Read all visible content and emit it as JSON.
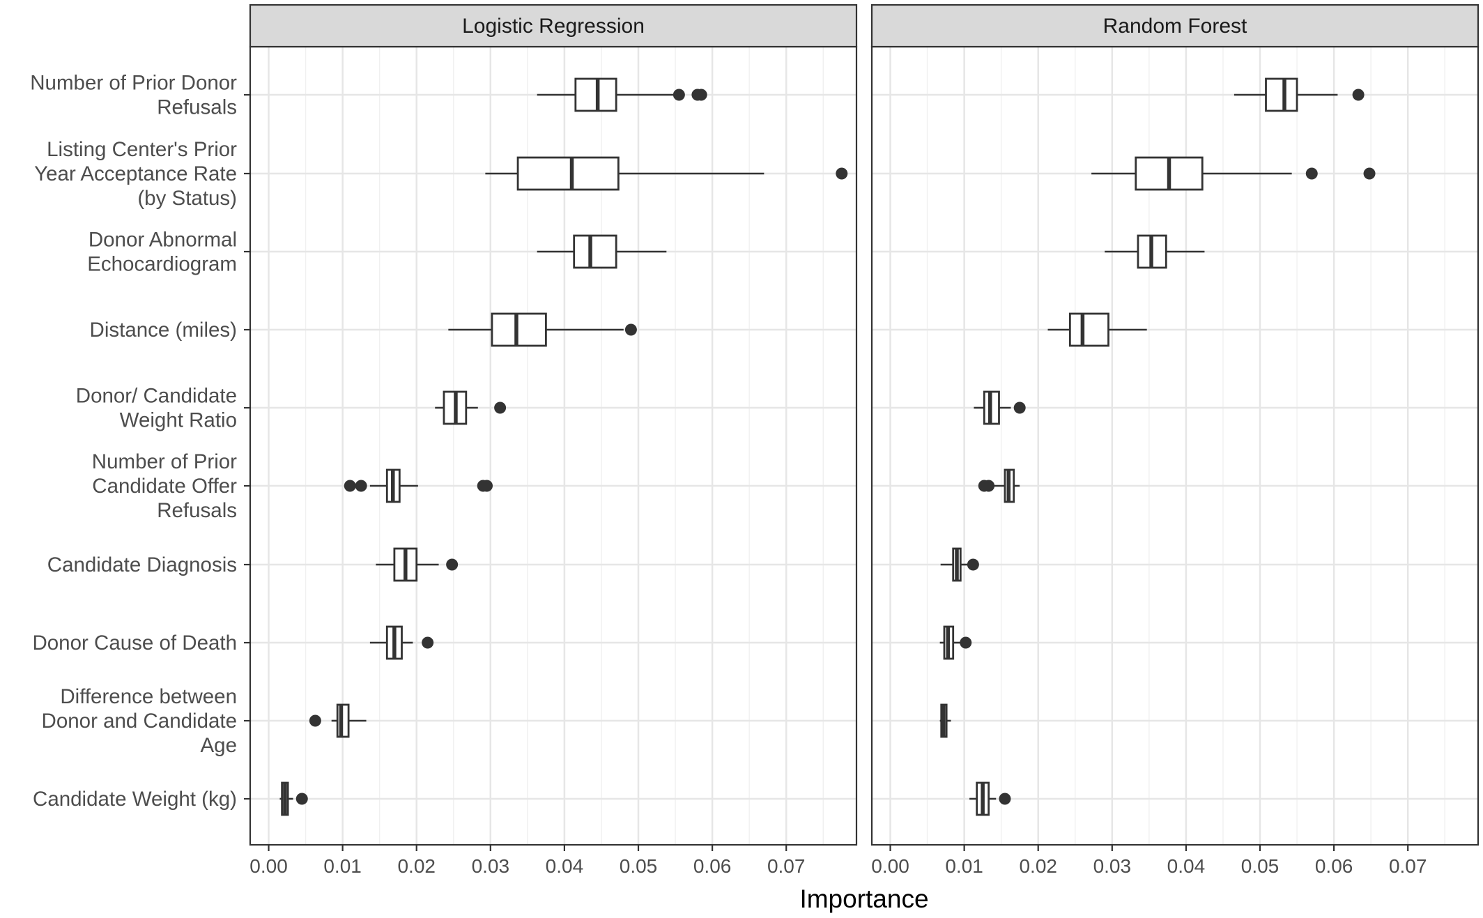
{
  "chart_data": {
    "type": "boxplot",
    "xlabel": "Importance",
    "xlim": [
      -0.0025,
      0.0795
    ],
    "x_ticks": [
      0.0,
      0.01,
      0.02,
      0.03,
      0.04,
      0.05,
      0.06,
      0.07
    ],
    "x_tick_labels": [
      "0.00",
      "0.01",
      "0.02",
      "0.03",
      "0.04",
      "0.05",
      "0.06",
      "0.07"
    ],
    "grid": true,
    "categories": [
      [
        "Number of Prior Donor",
        "Refusals"
      ],
      [
        "Listing Center's Prior",
        "Year Acceptance Rate",
        "(by Status)"
      ],
      [
        "Donor Abnormal",
        "Echocardiogram"
      ],
      [
        "Distance (miles)"
      ],
      [
        "Donor/ Candidate",
        "Weight Ratio"
      ],
      [
        "Number of Prior",
        "Candidate Offer",
        "Refusals"
      ],
      [
        "Candidate Diagnosis"
      ],
      [
        "Donor Cause of Death"
      ],
      [
        "Difference between",
        "Donor and Candidate",
        "Age"
      ],
      [
        "Candidate Weight (kg)"
      ]
    ],
    "panels": [
      {
        "title": "Logistic Regression",
        "boxes": [
          {
            "wlo": 0.0363,
            "q1": 0.0415,
            "med": 0.0445,
            "q3": 0.047,
            "whi": 0.0553,
            "out": [
              0.0555,
              0.058,
              0.0585
            ]
          },
          {
            "wlo": 0.0293,
            "q1": 0.0337,
            "med": 0.041,
            "q3": 0.0473,
            "whi": 0.067,
            "out": [
              0.0775
            ]
          },
          {
            "wlo": 0.0363,
            "q1": 0.0413,
            "med": 0.0435,
            "q3": 0.047,
            "whi": 0.0538,
            "out": []
          },
          {
            "wlo": 0.0243,
            "q1": 0.0302,
            "med": 0.0335,
            "q3": 0.0375,
            "whi": 0.048,
            "out": [
              0.049
            ]
          },
          {
            "wlo": 0.0225,
            "q1": 0.0237,
            "med": 0.0253,
            "q3": 0.0267,
            "whi": 0.0283,
            "out": [
              0.0313
            ]
          },
          {
            "wlo": 0.0137,
            "q1": 0.016,
            "med": 0.0168,
            "q3": 0.0177,
            "whi": 0.0202,
            "out": [
              0.011,
              0.0125,
              0.029,
              0.0295
            ]
          },
          {
            "wlo": 0.0145,
            "q1": 0.017,
            "med": 0.0185,
            "q3": 0.02,
            "whi": 0.023,
            "out": [
              0.0248
            ]
          },
          {
            "wlo": 0.0137,
            "q1": 0.016,
            "med": 0.017,
            "q3": 0.018,
            "whi": 0.0195,
            "out": [
              0.0215
            ]
          },
          {
            "wlo": 0.0085,
            "q1": 0.0093,
            "med": 0.0098,
            "q3": 0.0108,
            "whi": 0.0132,
            "out": [
              0.0063
            ]
          },
          {
            "wlo": 0.0015,
            "q1": 0.0018,
            "med": 0.0022,
            "q3": 0.0026,
            "whi": 0.0033,
            "out": [
              0.0045
            ]
          }
        ]
      },
      {
        "title": "Random Forest",
        "boxes": [
          {
            "wlo": 0.0465,
            "q1": 0.0508,
            "med": 0.0533,
            "q3": 0.055,
            "whi": 0.0605,
            "out": [
              0.0633
            ]
          },
          {
            "wlo": 0.0272,
            "q1": 0.0332,
            "med": 0.0377,
            "q3": 0.0422,
            "whi": 0.0543,
            "out": [
              0.057,
              0.0648
            ]
          },
          {
            "wlo": 0.029,
            "q1": 0.0335,
            "med": 0.0353,
            "q3": 0.0373,
            "whi": 0.0425,
            "out": []
          },
          {
            "wlo": 0.0213,
            "q1": 0.0243,
            "med": 0.026,
            "q3": 0.0295,
            "whi": 0.0347,
            "out": []
          },
          {
            "wlo": 0.0113,
            "q1": 0.0127,
            "med": 0.0135,
            "q3": 0.0147,
            "whi": 0.0163,
            "out": [
              0.0175
            ]
          },
          {
            "wlo": 0.0127,
            "q1": 0.0155,
            "med": 0.016,
            "q3": 0.0167,
            "whi": 0.0175,
            "out": [
              0.0127,
              0.0133
            ]
          },
          {
            "wlo": 0.0068,
            "q1": 0.0085,
            "med": 0.009,
            "q3": 0.0095,
            "whi": 0.0105,
            "out": [
              0.0112
            ]
          },
          {
            "wlo": 0.0067,
            "q1": 0.0073,
            "med": 0.0078,
            "q3": 0.0085,
            "whi": 0.0095,
            "out": [
              0.0102
            ]
          },
          {
            "wlo": 0.0067,
            "q1": 0.0069,
            "med": 0.0072,
            "q3": 0.0076,
            "whi": 0.0082,
            "out": []
          },
          {
            "wlo": 0.0107,
            "q1": 0.0117,
            "med": 0.0125,
            "q3": 0.0133,
            "whi": 0.0143,
            "out": [
              0.0155
            ]
          }
        ]
      }
    ]
  }
}
